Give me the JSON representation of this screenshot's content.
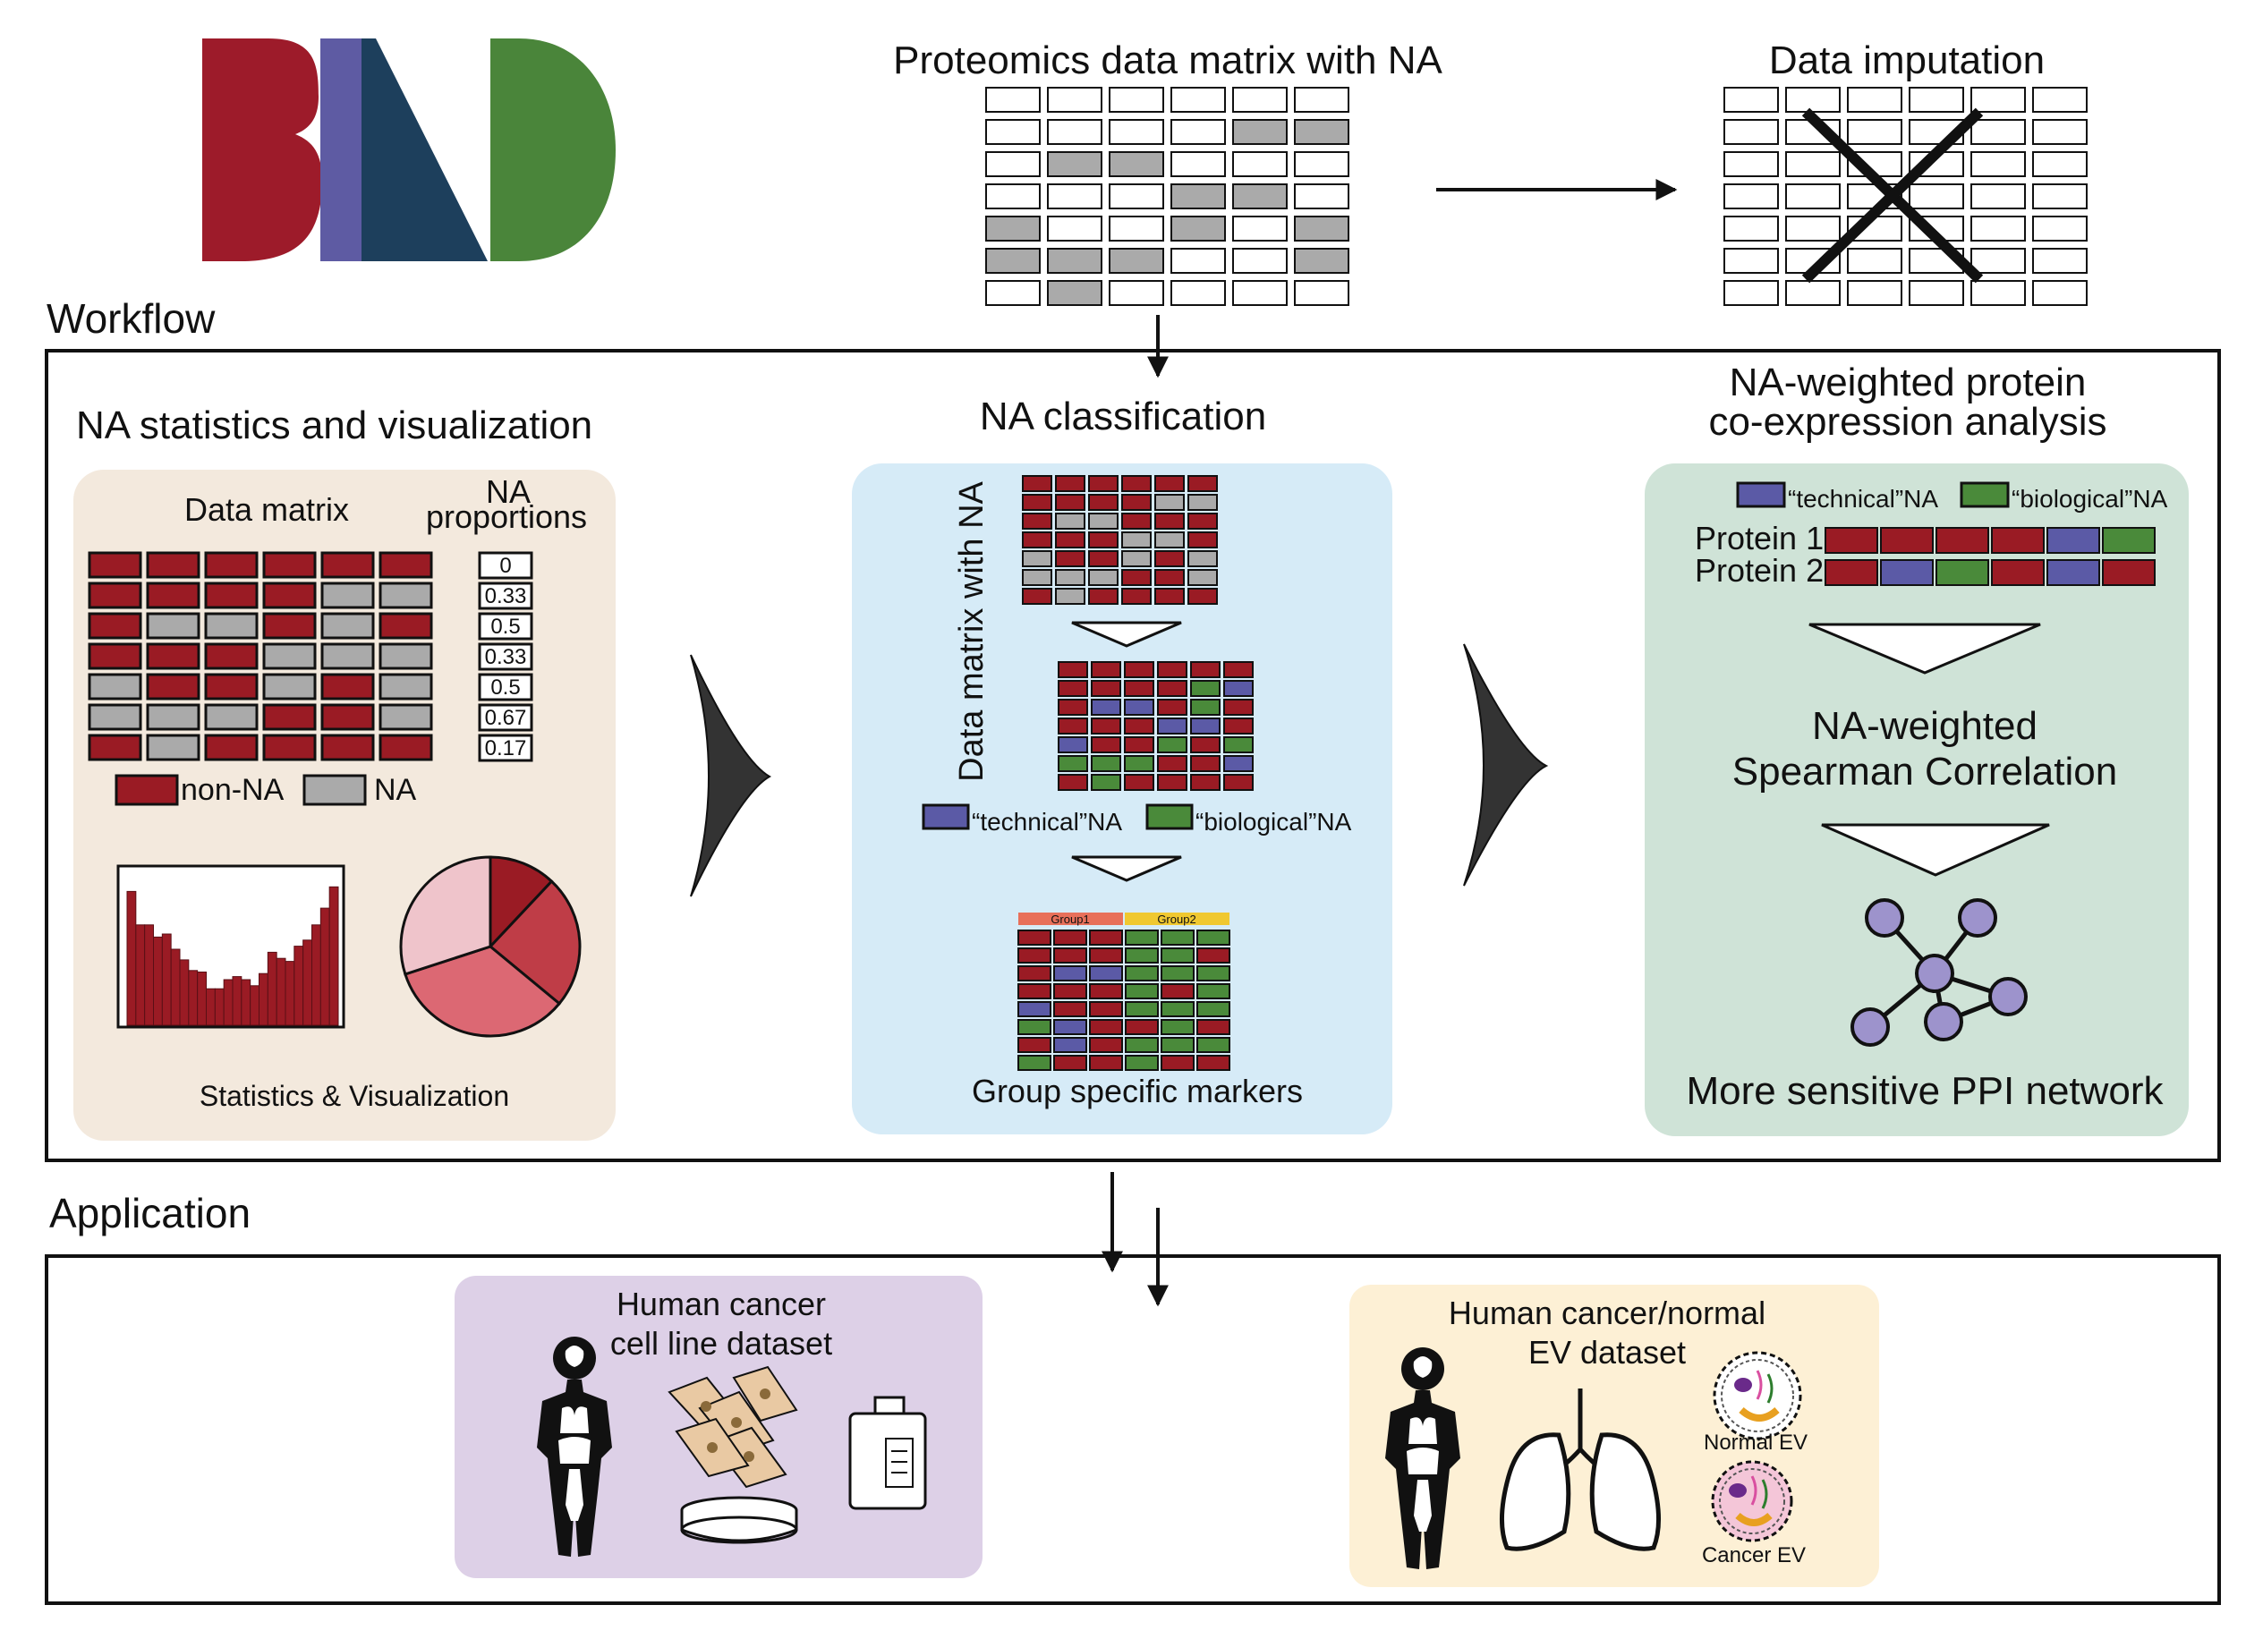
{
  "colors": {
    "non_na": "#9a1b24",
    "na": "#aaaaaa",
    "technical": "#5b5aa6",
    "biological": "#4a8a3a",
    "logo_red": "#9d1b2a",
    "logo_purple": "#5e5ba3",
    "logo_navy": "#1d3f5c",
    "logo_green": "#4a853a",
    "panel_beige": "#f3e9dd",
    "panel_blue": "#d6ebf7",
    "panel_green": "#cfe3d7",
    "panel_lavender": "#ddd0e7",
    "panel_cream": "#fdf0d5",
    "group1": "#e8705a",
    "group2": "#f0c830",
    "node": "#9d93cc"
  },
  "top": {
    "matrix_title": "Proteomics data matrix with NA",
    "imputation_title": "Data imputation",
    "imputation_crossed": true
  },
  "sections": {
    "workflow": "Workflow",
    "application": "Application"
  },
  "panel1": {
    "title": "NA statistics and visualization",
    "matrix_label": "Data matrix",
    "proportions_label_1": "NA",
    "proportions_label_2": "proportions",
    "proportions": [
      "0",
      "0.33",
      "0.5",
      "0.33",
      "0.5",
      "0.67",
      "0.17"
    ],
    "legend_non_na": "non-NA",
    "legend_na": "NA",
    "footer": "Statistics & Visualization"
  },
  "panel2": {
    "title": "NA classification",
    "side_label": "Data matrix with NA",
    "legend_technical": "“technical”NA",
    "legend_biological": "“biological”NA",
    "group1": "Group1",
    "group2": "Group2",
    "footer": "Group specific markers"
  },
  "panel3": {
    "title_1": "NA-weighted protein",
    "title_2": "co-expression analysis",
    "legend_technical": "“technical”NA",
    "legend_biological": "“biological”NA",
    "protein_1": "Protein 1",
    "protein_2": "Protein 2",
    "method_1": "NA-weighted",
    "method_2": "Spearman Correlation",
    "footer": "More sensitive PPI network"
  },
  "app1": {
    "title_1": "Human cancer",
    "title_2": "cell line dataset"
  },
  "app2": {
    "title_1": "Human cancer/normal",
    "title_2": "EV dataset",
    "normal_ev": "Normal EV",
    "cancer_ev": "Cancer EV"
  },
  "matrices": {
    "top_na": [
      [
        0,
        0,
        0,
        0,
        0,
        0
      ],
      [
        0,
        0,
        0,
        0,
        1,
        1
      ],
      [
        0,
        1,
        1,
        0,
        0,
        0
      ],
      [
        0,
        0,
        0,
        1,
        1,
        0
      ],
      [
        1,
        0,
        0,
        1,
        0,
        1
      ],
      [
        1,
        1,
        1,
        0,
        0,
        1
      ],
      [
        0,
        1,
        0,
        0,
        0,
        0
      ]
    ],
    "panel1": [
      [
        0,
        0,
        0,
        0,
        0,
        0
      ],
      [
        0,
        0,
        0,
        0,
        1,
        1
      ],
      [
        0,
        1,
        1,
        0,
        1,
        0
      ],
      [
        0,
        0,
        0,
        1,
        1,
        1
      ],
      [
        1,
        0,
        0,
        1,
        0,
        1
      ],
      [
        1,
        1,
        1,
        0,
        0,
        1
      ],
      [
        0,
        1,
        0,
        0,
        0,
        0
      ]
    ],
    "p2_na": [
      [
        0,
        0,
        0,
        0,
        0,
        0
      ],
      [
        0,
        0,
        0,
        0,
        1,
        1
      ],
      [
        0,
        1,
        1,
        0,
        0,
        0
      ],
      [
        0,
        0,
        0,
        1,
        1,
        0
      ],
      [
        1,
        0,
        0,
        1,
        0,
        1
      ],
      [
        1,
        1,
        1,
        0,
        0,
        1
      ],
      [
        0,
        1,
        0,
        0,
        0,
        0
      ]
    ],
    "p2_class": [
      [
        0,
        0,
        0,
        0,
        0,
        0
      ],
      [
        0,
        0,
        0,
        0,
        3,
        2
      ],
      [
        0,
        2,
        2,
        0,
        3,
        0
      ],
      [
        0,
        0,
        0,
        2,
        2,
        0
      ],
      [
        2,
        0,
        0,
        3,
        0,
        3
      ],
      [
        3,
        3,
        3,
        0,
        0,
        2
      ],
      [
        0,
        3,
        0,
        0,
        0,
        0
      ]
    ],
    "p2_group": [
      [
        0,
        0,
        0,
        3,
        3,
        3
      ],
      [
        0,
        0,
        0,
        3,
        3,
        0
      ],
      [
        0,
        2,
        2,
        3,
        3,
        3
      ],
      [
        0,
        0,
        0,
        3,
        0,
        3
      ],
      [
        2,
        0,
        0,
        3,
        3,
        3
      ],
      [
        3,
        2,
        0,
        0,
        3,
        0
      ],
      [
        0,
        2,
        0,
        3,
        3,
        3
      ],
      [
        3,
        0,
        0,
        3,
        0,
        0
      ]
    ],
    "protein_1": [
      0,
      0,
      0,
      0,
      2,
      3
    ],
    "protein_2": [
      0,
      2,
      3,
      0,
      2,
      0
    ]
  },
  "chart_data": [
    {
      "type": "bar",
      "title": "",
      "values": [
        0.88,
        0.66,
        0.66,
        0.58,
        0.6,
        0.5,
        0.43,
        0.36,
        0.35,
        0.24,
        0.24,
        0.3,
        0.32,
        0.3,
        0.26,
        0.34,
        0.48,
        0.44,
        0.42,
        0.52,
        0.56,
        0.66,
        0.77,
        0.91
      ],
      "ylim": [
        0,
        1
      ],
      "grid": false
    },
    {
      "type": "pie",
      "title": "",
      "values": [
        0.12,
        0.24,
        0.34,
        0.3
      ],
      "colors": [
        "#9a1b24",
        "#bf3d47",
        "#dc6873",
        "#efc4cb"
      ]
    }
  ]
}
